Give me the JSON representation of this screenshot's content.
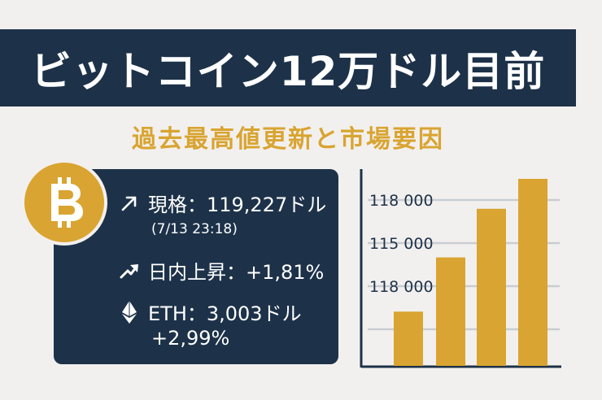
{
  "title": "ビットコイン12万ドル目前",
  "subtitle": "過去最高値更新と市場要因",
  "colors": {
    "navy": "#1d3249",
    "gold": "#d9a431",
    "background": "#f2f0ee",
    "grid": "#c9cdd2"
  },
  "stats": {
    "price_line": "現格：119,227ドル",
    "timestamp": "(7/13 23:18)",
    "change_line": "日内上昇：+1,81%",
    "eth_line": "ETH：3,003ドル",
    "eth_change": "+2,99%"
  },
  "icons": {
    "coin": "bitcoin-icon",
    "price": "arrow-up-right-icon",
    "change": "trend-up-arrow-icon",
    "eth": "ethereum-icon"
  },
  "chart_data": {
    "type": "bar",
    "title": "",
    "xlabel": "",
    "ylabel": "",
    "tick_labels": [
      "118 000",
      "115 000",
      "118 000"
    ],
    "values": [
      0.29,
      0.58,
      0.84,
      1.0
    ],
    "grid": true,
    "color": "#d9a431"
  }
}
